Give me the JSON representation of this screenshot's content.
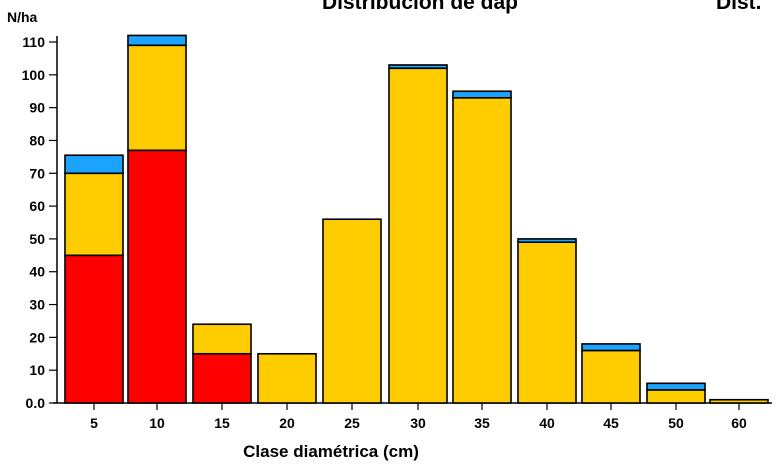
{
  "chart_data": {
    "type": "bar",
    "stacked": true,
    "titles": [
      "Distribución de dap",
      "Dist."
    ],
    "ylabel": "N/ha",
    "xlabel": "Clase diamétrica (cm)",
    "categories": [
      "5",
      "10",
      "15",
      "20",
      "25",
      "30",
      "35",
      "40",
      "45",
      "50",
      "60"
    ],
    "yticks": [
      "0.0",
      "10",
      "20",
      "30",
      "40",
      "50",
      "60",
      "70",
      "80",
      "90",
      "100",
      "110"
    ],
    "ylim": [
      0,
      110
    ],
    "grid": false,
    "series": [
      {
        "color": "#ff0000",
        "values": [
          45,
          77,
          15,
          0,
          0,
          0,
          0,
          0,
          0,
          0,
          0
        ]
      },
      {
        "color": "#ffcc00",
        "values": [
          25,
          32,
          9,
          15,
          56,
          102,
          93,
          49,
          16,
          4,
          1
        ]
      },
      {
        "color": "#1aa3ff",
        "values": [
          5.5,
          3,
          0,
          0,
          0,
          1,
          2,
          1,
          2,
          2,
          0
        ]
      }
    ]
  }
}
